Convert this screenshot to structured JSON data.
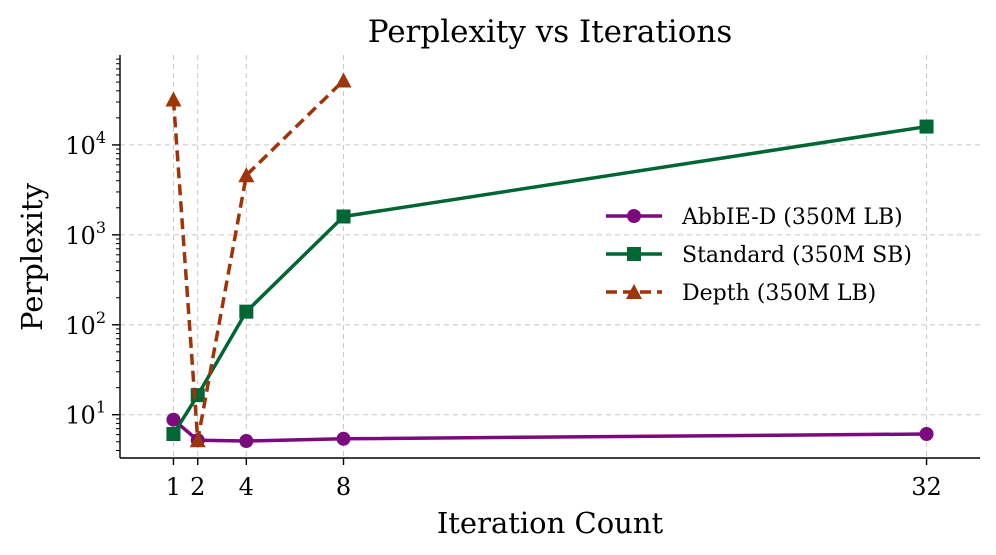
{
  "chart_data": {
    "type": "line",
    "title": "Perplexity vs Iterations",
    "xlabel": "Iteration Count",
    "ylabel": "Perplexity",
    "yscale": "log",
    "grid": true,
    "legend_position": "center-right",
    "x_ticks": [
      1,
      2,
      4,
      8,
      32
    ],
    "x_tick_labels": [
      "1",
      "2",
      "4",
      "8",
      "32"
    ],
    "xlim": [
      -1.2,
      34.2
    ],
    "ylim": [
      3.3,
      100000
    ],
    "y_tick_values": [
      10,
      100,
      1000,
      10000
    ],
    "y_tick_labels": [
      {
        "base": "10",
        "exp": "1"
      },
      {
        "base": "10",
        "exp": "2"
      },
      {
        "base": "10",
        "exp": "3"
      },
      {
        "base": "10",
        "exp": "4"
      }
    ],
    "series": [
      {
        "name": "AbbIE-D (350M LB)",
        "color": "#7a0a7e",
        "marker": "circle",
        "line_style": "solid",
        "x": [
          1,
          2,
          4,
          8,
          32
        ],
        "y": [
          8.8,
          5.2,
          5.1,
          5.4,
          6.1
        ]
      },
      {
        "name": "Standard (350M SB)",
        "color": "#006633",
        "marker": "square",
        "line_style": "solid",
        "x": [
          1,
          2,
          4,
          8,
          32
        ],
        "y": [
          6.1,
          16.5,
          140,
          1600,
          16000
        ]
      },
      {
        "name": "Depth (350M LB)",
        "color": "#9e3408",
        "marker": "triangle",
        "line_style": "dashed",
        "x": [
          1,
          2,
          4,
          8
        ],
        "y": [
          32000,
          5.2,
          4600,
          52000
        ]
      }
    ]
  }
}
